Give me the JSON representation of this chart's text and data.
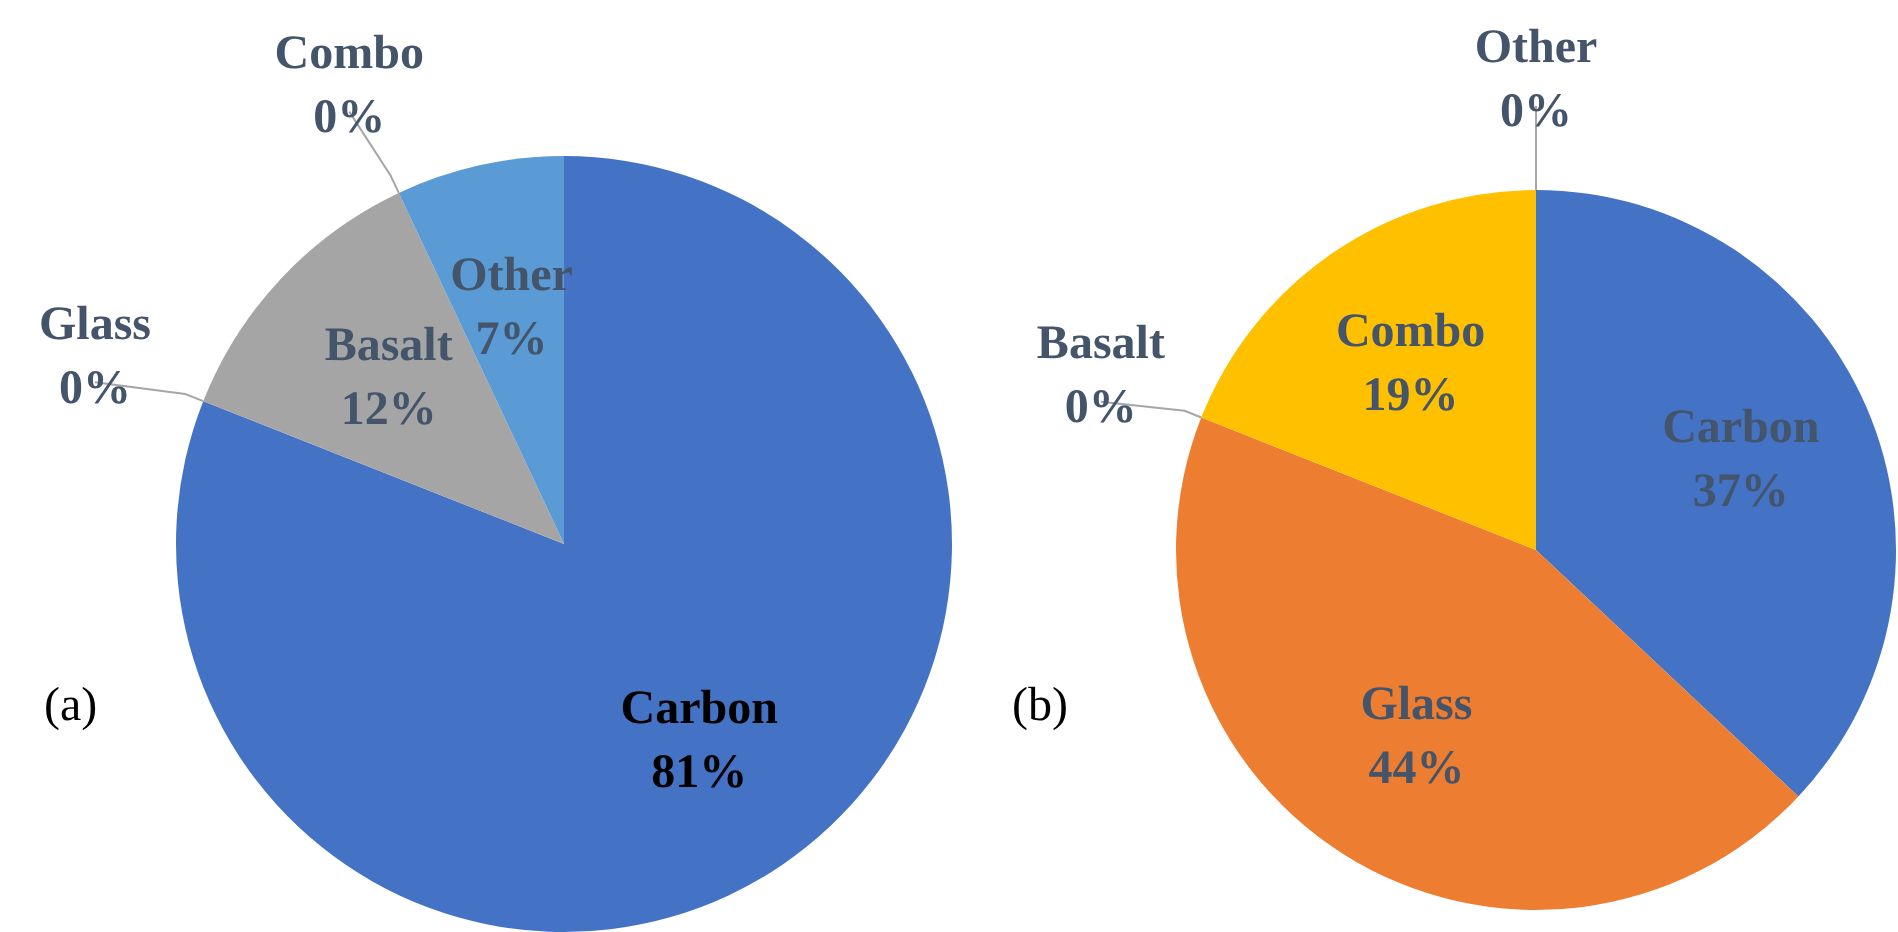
{
  "chart_data": [
    {
      "type": "pie",
      "categories": [
        "Carbon",
        "Glass",
        "Basalt",
        "Combo",
        "Other"
      ],
      "values": [
        81,
        0,
        12,
        0,
        7
      ],
      "value_labels": [
        "81%",
        "0%",
        "12%",
        "0%",
        "7%"
      ],
      "colors": [
        "#4472c4",
        "#ed7d31",
        "#a5a5a5",
        "#ffc000",
        "#5b9bd5"
      ],
      "legend": false,
      "annotations": [
        "(a)"
      ]
    },
    {
      "type": "pie",
      "categories": [
        "Carbon",
        "Glass",
        "Basalt",
        "Combo",
        "Other"
      ],
      "values": [
        37,
        44,
        0,
        19,
        0
      ],
      "value_labels": [
        "37%",
        "44%",
        "0%",
        "19%",
        "0%"
      ],
      "colors": [
        "#4472c4",
        "#ed7d31",
        "#a5a5a5",
        "#ffc000",
        "#5b9bd5"
      ],
      "legend": false,
      "annotations": [
        "(b)"
      ]
    }
  ]
}
